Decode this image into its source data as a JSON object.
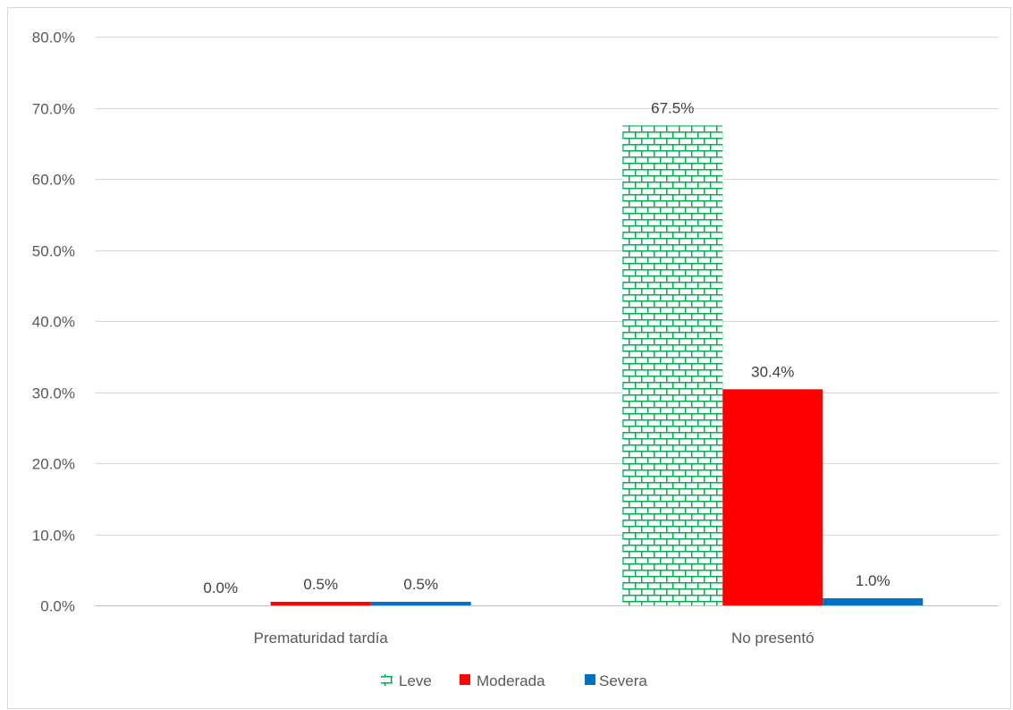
{
  "chart_data": {
    "type": "bar",
    "categories": [
      "Prematuridad tardía",
      "No presentó"
    ],
    "series": [
      {
        "name": "Leve",
        "values": [
          0.0,
          67.5
        ],
        "color": "#00b050",
        "pattern": "brick"
      },
      {
        "name": "Moderada",
        "values": [
          0.5,
          30.4
        ],
        "color": "#ff0000"
      },
      {
        "name": "Severa",
        "values": [
          0.5,
          1.0
        ],
        "color": "#0070c0"
      }
    ],
    "data_labels": [
      [
        "0.0%",
        "67.5%"
      ],
      [
        "0.5%",
        "30.4%"
      ],
      [
        "0.5%",
        "1.0%"
      ]
    ],
    "y_ticks": [
      "0.0%",
      "10.0%",
      "20.0%",
      "30.0%",
      "40.0%",
      "50.0%",
      "60.0%",
      "70.0%",
      "80.0%"
    ],
    "ylim": [
      0,
      80
    ],
    "grid": true,
    "legend_position": "bottom"
  }
}
